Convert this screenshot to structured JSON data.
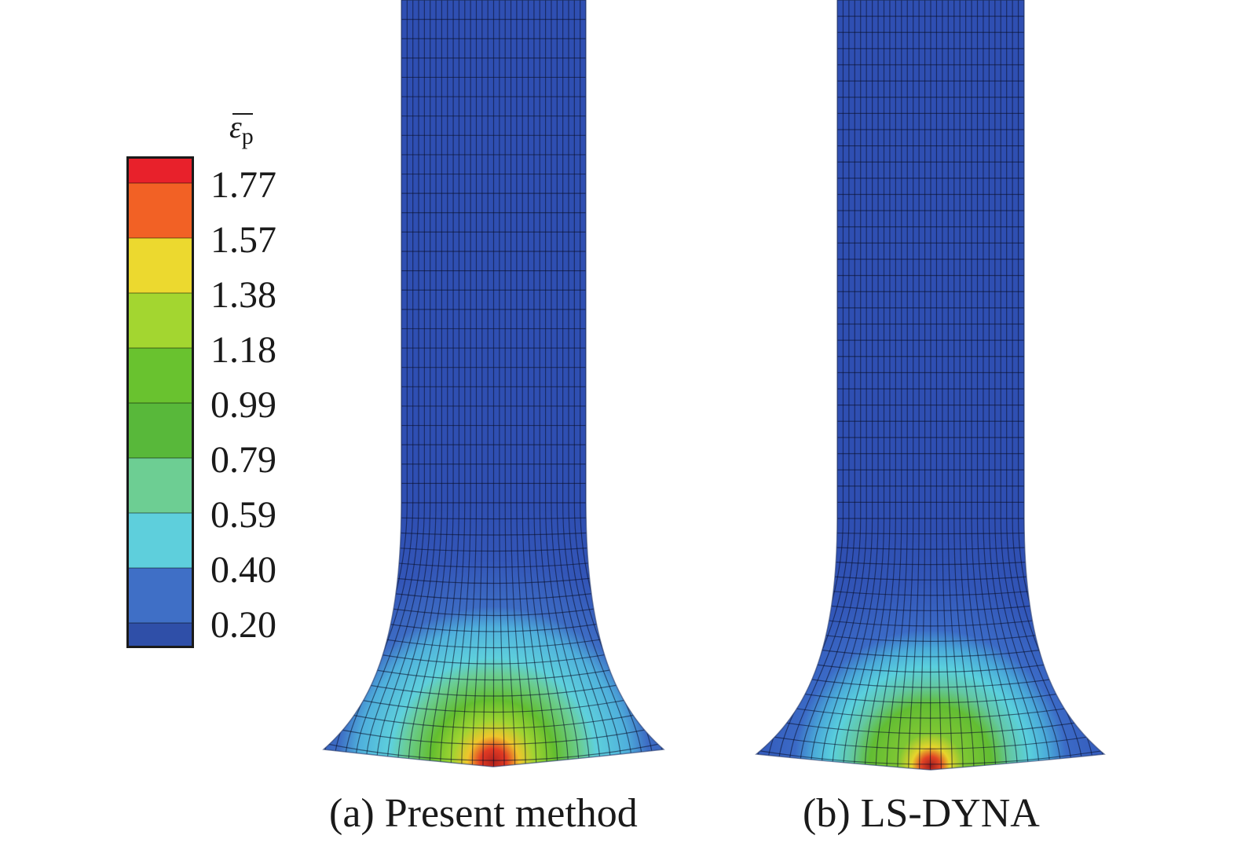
{
  "legend": {
    "title": "ε",
    "title_sub": "p",
    "labels": [
      "1.77",
      "1.57",
      "1.38",
      "1.18",
      "0.99",
      "0.79",
      "0.59",
      "0.40",
      "0.20"
    ],
    "colors": [
      "#e8212b",
      "#f26125",
      "#ecd92f",
      "#a3d630",
      "#69c22f",
      "#58b83a",
      "#6dce93",
      "#5ecfdc",
      "#3f6fc6",
      "#2f4fa8"
    ]
  },
  "panels": [
    {
      "caption": "(a) Present method"
    },
    {
      "caption": "(b) LS-DYNA"
    }
  ]
}
